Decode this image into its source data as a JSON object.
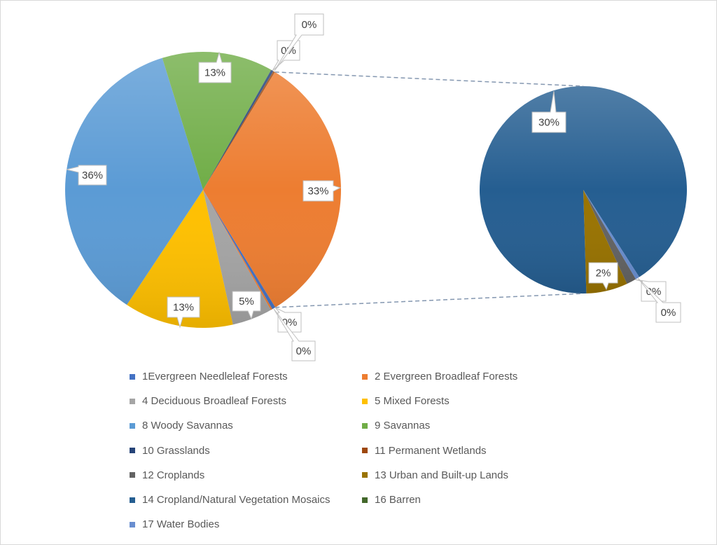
{
  "chart_data": {
    "type": "pie",
    "subtype": "pie-of-pie",
    "legend_position": "bottom",
    "series": [
      {
        "name": "1Evergreen Needleleaf Forests",
        "color": "#4472C4"
      },
      {
        "name": "2 Evergreen Broadleaf Forests",
        "color": "#ED7D31"
      },
      {
        "name": "4 Deciduous Broadleaf Forests",
        "color": "#A5A5A5"
      },
      {
        "name": "5 Mixed Forests",
        "color": "#FFC000"
      },
      {
        "name": "8 Woody Savannas",
        "color": "#5B9BD5"
      },
      {
        "name": "9 Savannas",
        "color": "#70AD47"
      },
      {
        "name": "10 Grasslands",
        "color": "#264478"
      },
      {
        "name": "11 Permanent Wetlands",
        "color": "#9E480E"
      },
      {
        "name": "12 Croplands",
        "color": "#636363"
      },
      {
        "name": "13 Urban and Built-up Lands",
        "color": "#997300"
      },
      {
        "name": "14 Cropland/Natural Vegetation Mosaics",
        "color": "#255E91"
      },
      {
        "name": "16 Barren",
        "color": "#43682B"
      },
      {
        "name": "17 Water Bodies",
        "color": "#698ED0"
      }
    ],
    "primary_slices": [
      {
        "series": "1Evergreen Needleleaf Forests",
        "value": 0.4,
        "label": "0%"
      },
      {
        "series": "2 Evergreen Broadleaf Forests",
        "value": 0.2,
        "label": "0%"
      },
      {
        "series": "4 Deciduous Broadleaf Forests",
        "value": 4.7,
        "label": "5%"
      },
      {
        "series": "5 Mixed Forests",
        "value": 12.8,
        "label": "13%"
      },
      {
        "series": "8 Woody Savannas",
        "value": 35.9,
        "label": "36%"
      },
      {
        "series": "9 Savannas",
        "value": 13.0,
        "label": "13%"
      },
      {
        "series": "10 Grasslands",
        "value": 0.3,
        "label": "0%"
      },
      {
        "series": "11 Permanent Wetlands",
        "value": 0.2,
        "label": "0%"
      }
    ],
    "primary_other": {
      "value": 32.5,
      "label": "33%",
      "color": "#ED7D31"
    },
    "secondary_slices": [
      {
        "series": "12 Croplands",
        "value": 0.5,
        "label": "0%"
      },
      {
        "series": "13 Urban and Built-up Lands",
        "value": 2.1,
        "label": "2%"
      },
      {
        "series": "14 Cropland/Natural Vegetation Mosaics",
        "value": 29.7,
        "label": "30%"
      },
      {
        "series": "17 Water Bodies",
        "value": 0.2,
        "label": "0%"
      }
    ],
    "connector_color": "#8497B0"
  }
}
